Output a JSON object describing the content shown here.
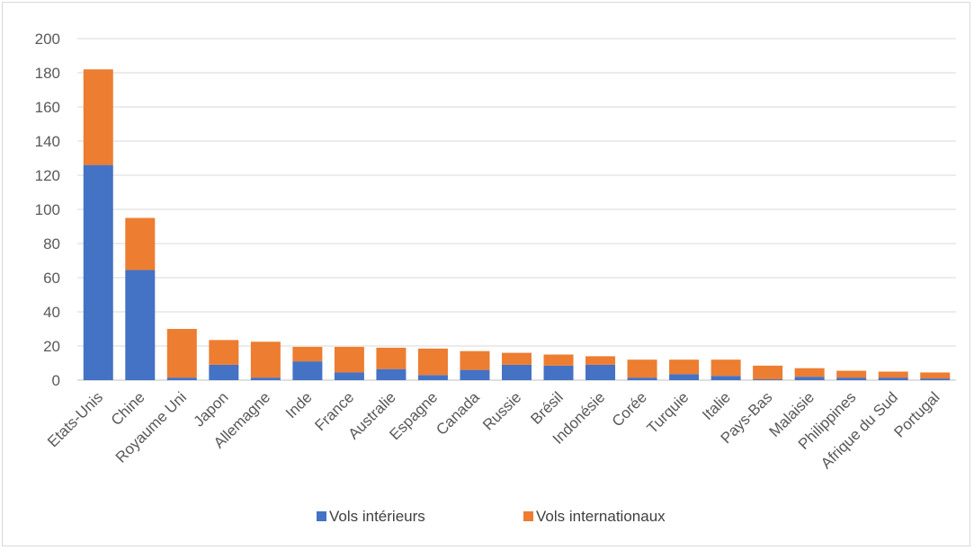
{
  "chart_data": {
    "type": "bar",
    "stacked": true,
    "title": "",
    "xlabel": "",
    "ylabel": "",
    "ylim": [
      0,
      200
    ],
    "yticks": [
      0,
      20,
      40,
      60,
      80,
      100,
      120,
      140,
      160,
      180,
      200
    ],
    "grid": true,
    "legend_position": "bottom",
    "categories": [
      "Etats-Unis",
      "Chine",
      "Royaume Uni",
      "Japon",
      "Allemagne",
      "Inde",
      "France",
      "Australie",
      "Espagne",
      "Canada",
      "Russie",
      "Brésil",
      "Indonésie",
      "Corée",
      "Turquie",
      "Italie",
      "Pays-Bas",
      "Malaisie",
      "Philippines",
      "Afrique du Sud",
      "Portugal"
    ],
    "series": [
      {
        "name": "Vols intérieurs",
        "color": "#4472C4",
        "values": [
          126,
          64.5,
          1.5,
          9,
          1.5,
          11,
          4.5,
          6.5,
          3,
          6,
          9,
          8.5,
          9,
          1.5,
          3.5,
          2.5,
          0.5,
          2,
          1.5,
          1.5,
          1
        ]
      },
      {
        "name": "Vols internationaux",
        "color": "#ED7D31",
        "values": [
          56,
          30.5,
          28.5,
          14.5,
          21,
          8.5,
          15,
          12.5,
          15.5,
          11,
          7,
          6.5,
          5,
          10.5,
          8.5,
          9.5,
          8,
          5,
          4,
          3.5,
          3.5
        ]
      }
    ]
  }
}
